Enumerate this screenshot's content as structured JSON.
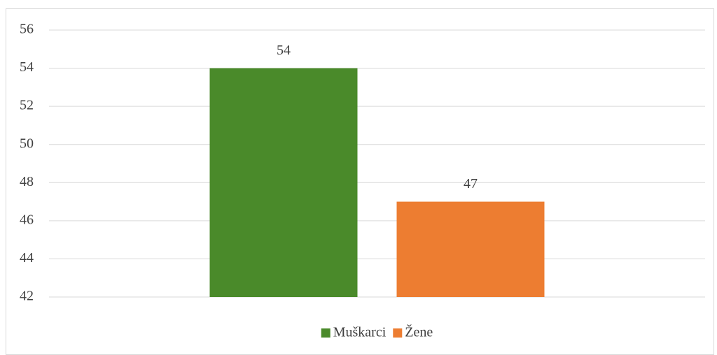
{
  "chart_data": {
    "type": "bar",
    "categories": [
      null
    ],
    "series": [
      {
        "name": "Muškarci",
        "color": "#4a8a2a",
        "values": [
          54
        ]
      },
      {
        "name": "Žene",
        "color": "#ed7d31",
        "values": [
          47
        ]
      }
    ],
    "ylim": [
      42,
      56
    ],
    "yticks": [
      42,
      44,
      46,
      48,
      50,
      52,
      54,
      56
    ],
    "grid": true,
    "legend": "bottom",
    "data_labels": true
  }
}
